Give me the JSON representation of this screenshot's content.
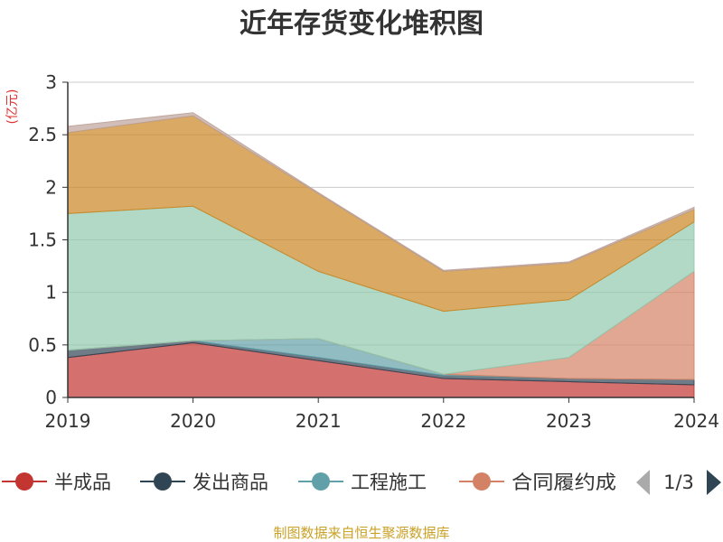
{
  "chart_data": {
    "type": "area",
    "stacked": true,
    "title": "近年存货变化堆积图",
    "unit_label": "(亿元)",
    "x": [
      "2019",
      "2020",
      "2021",
      "2022",
      "2023",
      "2024"
    ],
    "ylim": [
      0,
      3
    ],
    "yticks": [
      "0",
      "0.5",
      "1",
      "1.5",
      "2",
      "2.5",
      "3"
    ],
    "grid": true,
    "series": [
      {
        "name": "半成品",
        "color": "#c23531",
        "values": [
          0.38,
          0.52,
          0.35,
          0.18,
          0.15,
          0.12
        ]
      },
      {
        "name": "发出商品",
        "color": "#2f4554",
        "values": [
          0.07,
          0.02,
          0.03,
          0.03,
          0.03,
          0.05
        ]
      },
      {
        "name": "工程施工",
        "color": "#61a0a8",
        "values": [
          0.0,
          0.0,
          0.18,
          0.01,
          0.0,
          0.0
        ]
      },
      {
        "name": "合同履约成本",
        "color": "#d48265",
        "values": [
          0.0,
          0.0,
          0.0,
          0.0,
          0.2,
          1.03
        ]
      },
      {
        "name": "",
        "color": "#91c7ae",
        "values": [
          1.3,
          1.28,
          0.64,
          0.6,
          0.55,
          0.47
        ]
      },
      {
        "name": "",
        "color": "#ca8622",
        "values": [
          0.77,
          0.86,
          0.74,
          0.38,
          0.35,
          0.12
        ]
      },
      {
        "name": "",
        "color": "#bda29a",
        "values": [
          0.06,
          0.03,
          0.01,
          0.01,
          0.01,
          0.02
        ]
      }
    ]
  },
  "legend": {
    "visible_items": [
      "半成品",
      "发出商品",
      "工程施工",
      "合同履约成"
    ],
    "page_indicator": "1/3"
  },
  "source": "制图数据来自恒生聚源数据库"
}
